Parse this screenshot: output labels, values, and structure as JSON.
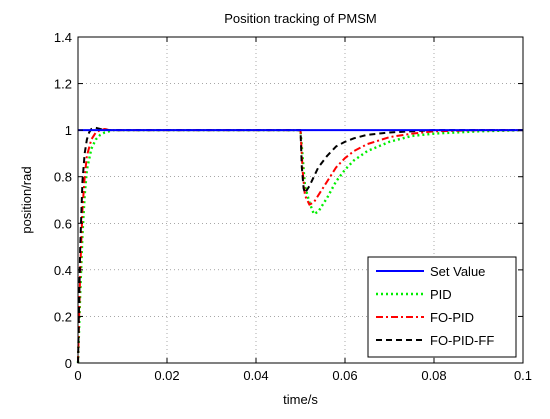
{
  "chart_data": {
    "type": "line",
    "title": "Position tracking of PMSM",
    "xlabel": "time/s",
    "ylabel": "position/rad",
    "xlim": [
      0,
      0.1
    ],
    "ylim": [
      0,
      1.4
    ],
    "xticks": [
      0,
      0.02,
      0.04,
      0.06,
      0.08,
      0.1
    ],
    "xtick_labels": [
      "0",
      "0.02",
      "0.04",
      "0.06",
      "0.08",
      "0.1"
    ],
    "yticks": [
      0,
      0.2,
      0.4,
      0.6,
      0.8,
      1,
      1.2,
      1.4
    ],
    "ytick_labels": [
      "0",
      "0.2",
      "0.4",
      "0.6",
      "0.8",
      "1",
      "1.2",
      "1.4"
    ],
    "grid": true,
    "legend_position": "bottom-right",
    "series": [
      {
        "name": "Set Value",
        "color": "#0000ff",
        "dash": "solid",
        "x": [
          0,
          0.1
        ],
        "y": [
          1,
          1
        ]
      },
      {
        "name": "PID",
        "color": "#00ee00",
        "dash": "dotted",
        "x": [
          0,
          0.0005,
          0.001,
          0.0015,
          0.002,
          0.003,
          0.004,
          0.005,
          0.006,
          0.007,
          0.008,
          0.01,
          0.02,
          0.04,
          0.05,
          0.0505,
          0.051,
          0.052,
          0.053,
          0.054,
          0.055,
          0.056,
          0.058,
          0.06,
          0.062,
          0.065,
          0.07,
          0.075,
          0.08,
          0.09,
          0.1
        ],
        "y": [
          0,
          0.3,
          0.55,
          0.72,
          0.83,
          0.92,
          0.96,
          0.98,
          0.99,
          0.995,
          1.0,
          1.0,
          1.0,
          1.0,
          1.0,
          0.88,
          0.76,
          0.69,
          0.64,
          0.65,
          0.68,
          0.71,
          0.78,
          0.83,
          0.87,
          0.91,
          0.95,
          0.975,
          0.985,
          0.995,
          1.0
        ]
      },
      {
        "name": "FO-PID",
        "color": "#ff0000",
        "dash": "dashdot",
        "x": [
          0,
          0.0005,
          0.001,
          0.0015,
          0.002,
          0.003,
          0.004,
          0.005,
          0.006,
          0.007,
          0.01,
          0.02,
          0.04,
          0.05,
          0.0505,
          0.051,
          0.052,
          0.053,
          0.054,
          0.056,
          0.058,
          0.06,
          0.062,
          0.065,
          0.07,
          0.075,
          0.08,
          0.09,
          0.1
        ],
        "y": [
          0,
          0.4,
          0.66,
          0.8,
          0.89,
          0.96,
          0.99,
          1.0,
          1.005,
          1.0,
          1.0,
          1.0,
          1.0,
          1.0,
          0.82,
          0.72,
          0.68,
          0.69,
          0.72,
          0.78,
          0.84,
          0.88,
          0.91,
          0.94,
          0.97,
          0.985,
          0.995,
          1.0,
          1.0
        ]
      },
      {
        "name": "FO-PID-FF",
        "color": "#000000",
        "dash": "dashed",
        "x": [
          0,
          0.0005,
          0.001,
          0.0015,
          0.002,
          0.0025,
          0.003,
          0.004,
          0.005,
          0.007,
          0.01,
          0.02,
          0.04,
          0.05,
          0.0503,
          0.0507,
          0.051,
          0.052,
          0.053,
          0.054,
          0.056,
          0.058,
          0.06,
          0.062,
          0.065,
          0.07,
          0.075,
          0.08,
          0.09,
          0.1
        ],
        "y": [
          0,
          0.5,
          0.78,
          0.9,
          0.96,
          0.99,
          1.005,
          1.01,
          1.005,
          1.0,
          1.0,
          1.0,
          1.0,
          1.0,
          0.84,
          0.75,
          0.73,
          0.76,
          0.8,
          0.84,
          0.89,
          0.93,
          0.95,
          0.965,
          0.98,
          0.99,
          0.995,
          1.0,
          1.0,
          1.0
        ]
      }
    ]
  }
}
